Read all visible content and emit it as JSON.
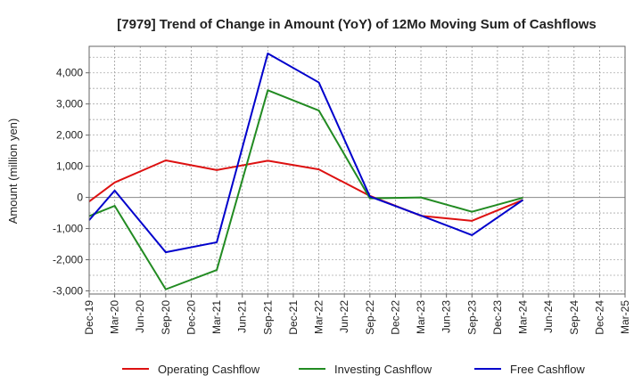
{
  "chart_data": {
    "type": "line",
    "title": "[7979]  Trend of Change in Amount (YoY) of 12Mo Moving Sum of Cashflows",
    "xlabel": "",
    "ylabel": "Amount (million yen)",
    "ylim": [
      -3100,
      4850
    ],
    "yticks": [
      -3000,
      -2000,
      -1000,
      0,
      1000,
      2000,
      3000,
      4000
    ],
    "ytick_labels": [
      "-3,000",
      "-2,000",
      "-1,000",
      "0",
      "1,000",
      "2,000",
      "3,000",
      "4,000"
    ],
    "categories": [
      "Dec-19",
      "Mar-20",
      "Jun-20",
      "Sep-20",
      "Dec-20",
      "Mar-21",
      "Jun-21",
      "Sep-21",
      "Dec-21",
      "Mar-22",
      "Jun-22",
      "Sep-22",
      "Dec-22",
      "Mar-23",
      "Jun-23",
      "Sep-23",
      "Dec-23",
      "Mar-24",
      "Jun-24",
      "Sep-24",
      "Dec-24",
      "Mar-25"
    ],
    "grid": true,
    "legend_position": "bottom",
    "series": [
      {
        "name": "Operating Cashflow",
        "color": "#dd1111",
        "values": [
          -130,
          480,
          null,
          1190,
          null,
          880,
          null,
          1180,
          null,
          900,
          null,
          50,
          null,
          -590,
          null,
          -750,
          null,
          -80,
          null,
          null,
          null,
          null
        ]
      },
      {
        "name": "Investing Cashflow",
        "color": "#228b22",
        "values": [
          -600,
          -270,
          null,
          -2950,
          null,
          -2330,
          null,
          3440,
          null,
          2790,
          null,
          -30,
          null,
          0,
          null,
          -460,
          null,
          -10,
          null,
          null,
          null,
          null
        ]
      },
      {
        "name": "Free Cashflow",
        "color": "#0000cc",
        "values": [
          -730,
          220,
          null,
          -1760,
          null,
          -1440,
          null,
          4620,
          null,
          3690,
          null,
          30,
          null,
          -580,
          null,
          -1210,
          null,
          -80,
          null,
          null,
          null,
          null
        ]
      }
    ]
  }
}
